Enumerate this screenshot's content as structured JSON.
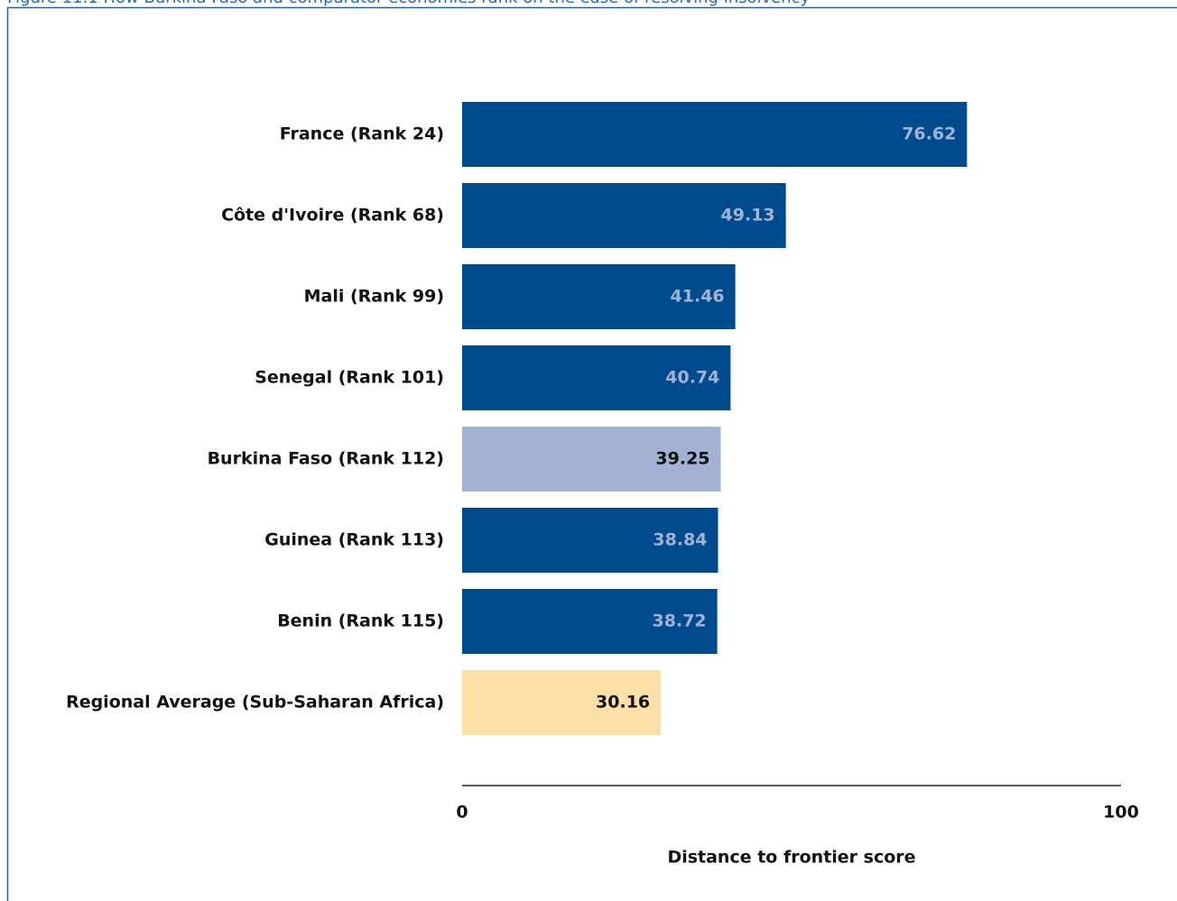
{
  "chart_data": {
    "type": "barh",
    "title": "Figure 11.1 How Burkina Faso and comparator economies rank on the ease of resolving insolvency",
    "xlabel": "Distance to frontier score",
    "categories": [
      "France (Rank 24)",
      "Côte d'Ivoire (Rank 68)",
      "Mali (Rank 99)",
      "Senegal (Rank 101)",
      "Burkina Faso (Rank 112)",
      "Guinea (Rank 113)",
      "Benin (Rank 115)",
      "Regional Average (Sub-Saharan Africa)"
    ],
    "values": [
      76.62,
      49.13,
      41.46,
      40.74,
      39.25,
      38.84,
      38.72,
      30.16
    ],
    "colors": [
      "#004b8d",
      "#004b8d",
      "#004b8d",
      "#004b8d",
      "#a3b1d3",
      "#004b8d",
      "#004b8d",
      "#fde0a7"
    ],
    "xlim": [
      0,
      100
    ],
    "xticks": [
      0,
      100
    ]
  }
}
